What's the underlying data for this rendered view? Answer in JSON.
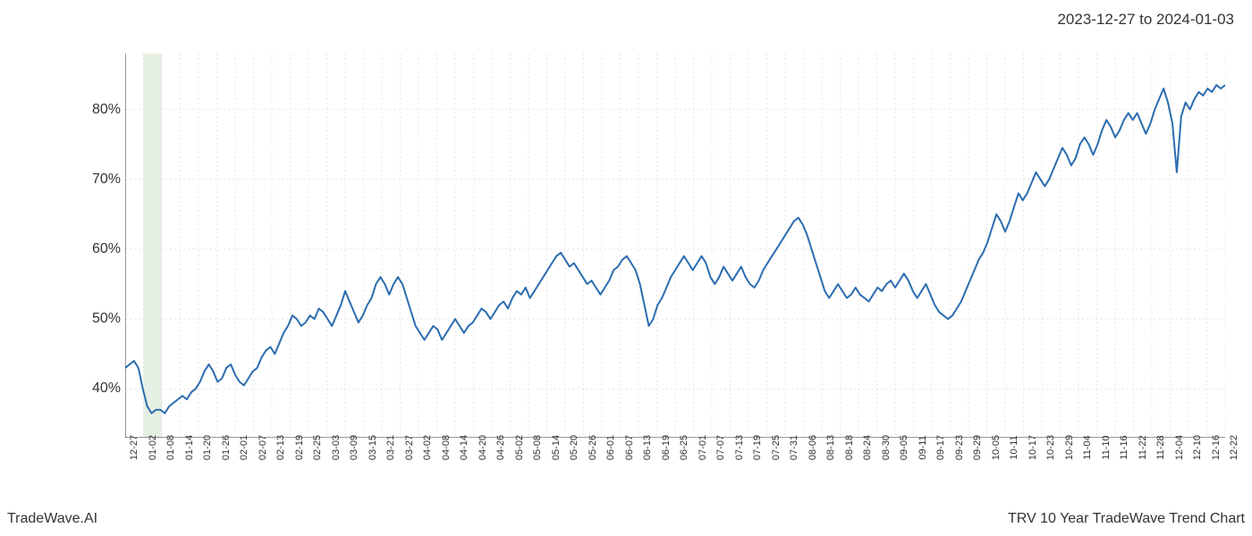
{
  "header": {
    "date_range": "2023-12-27 to 2024-01-03"
  },
  "footer": {
    "left": "TradeWave.AI",
    "right": "TRV 10 Year TradeWave Trend Chart"
  },
  "chart": {
    "type": "line",
    "background_color": "#ffffff",
    "grid_color": "#d8d8d8",
    "line_color": "#2b6cb0",
    "line_width": 2,
    "highlight_band_color": "#dce8d8",
    "highlight_band_start": "01-02",
    "highlight_band_end": "01-08",
    "axis_label_color": "#333333",
    "y_axis": {
      "ticks": [
        40,
        50,
        60,
        70,
        80
      ],
      "tick_labels": [
        "40%",
        "50%",
        "60%",
        "70%",
        "80%"
      ],
      "min": 33,
      "max": 88,
      "fontsize": 16
    },
    "x_axis": {
      "ticks": [
        "12-27",
        "01-02",
        "01-08",
        "01-14",
        "01-20",
        "01-26",
        "02-01",
        "02-07",
        "02-13",
        "02-19",
        "02-25",
        "03-03",
        "03-09",
        "03-15",
        "03-21",
        "03-27",
        "04-02",
        "04-08",
        "04-14",
        "04-20",
        "04-26",
        "05-02",
        "05-08",
        "05-14",
        "05-20",
        "05-26",
        "06-01",
        "06-07",
        "06-13",
        "06-19",
        "06-25",
        "07-01",
        "07-07",
        "07-13",
        "07-19",
        "07-25",
        "07-31",
        "08-06",
        "08-13",
        "08-18",
        "08-24",
        "08-30",
        "09-05",
        "09-11",
        "09-17",
        "09-23",
        "09-29",
        "10-05",
        "10-11",
        "10-17",
        "10-23",
        "10-29",
        "11-04",
        "11-10",
        "11-16",
        "11-22",
        "11-28",
        "12-04",
        "12-10",
        "12-16",
        "12-22"
      ],
      "fontsize": 11,
      "rotation": 90
    },
    "series": [
      {
        "x": "12-27",
        "y": 43.0
      },
      {
        "x": "12-28",
        "y": 43.5
      },
      {
        "x": "12-29",
        "y": 44.0
      },
      {
        "x": "01-02",
        "y": 43.0
      },
      {
        "x": "01-03",
        "y": 40.0
      },
      {
        "x": "01-04",
        "y": 37.5
      },
      {
        "x": "01-05",
        "y": 36.5
      },
      {
        "x": "01-08",
        "y": 37.0
      },
      {
        "x": "01-09",
        "y": 37.0
      },
      {
        "x": "01-10",
        "y": 36.5
      },
      {
        "x": "01-11",
        "y": 37.5
      },
      {
        "x": "01-12",
        "y": 38.0
      },
      {
        "x": "01-14",
        "y": 38.5
      },
      {
        "x": "01-16",
        "y": 39.0
      },
      {
        "x": "01-17",
        "y": 38.5
      },
      {
        "x": "01-18",
        "y": 39.5
      },
      {
        "x": "01-20",
        "y": 40.0
      },
      {
        "x": "01-22",
        "y": 41.0
      },
      {
        "x": "01-23",
        "y": 42.5
      },
      {
        "x": "01-24",
        "y": 43.5
      },
      {
        "x": "01-26",
        "y": 42.5
      },
      {
        "x": "01-29",
        "y": 41.0
      },
      {
        "x": "01-30",
        "y": 41.5
      },
      {
        "x": "02-01",
        "y": 43.0
      },
      {
        "x": "02-02",
        "y": 43.5
      },
      {
        "x": "02-05",
        "y": 42.0
      },
      {
        "x": "02-07",
        "y": 41.0
      },
      {
        "x": "02-08",
        "y": 40.5
      },
      {
        "x": "02-09",
        "y": 41.5
      },
      {
        "x": "02-12",
        "y": 42.5
      },
      {
        "x": "02-13",
        "y": 43.0
      },
      {
        "x": "02-14",
        "y": 44.5
      },
      {
        "x": "02-16",
        "y": 45.5
      },
      {
        "x": "02-19",
        "y": 46.0
      },
      {
        "x": "02-20",
        "y": 45.0
      },
      {
        "x": "02-21",
        "y": 46.5
      },
      {
        "x": "02-23",
        "y": 48.0
      },
      {
        "x": "02-25",
        "y": 49.0
      },
      {
        "x": "02-27",
        "y": 50.5
      },
      {
        "x": "02-28",
        "y": 50.0
      },
      {
        "x": "03-01",
        "y": 49.0
      },
      {
        "x": "03-03",
        "y": 49.5
      },
      {
        "x": "03-05",
        "y": 50.5
      },
      {
        "x": "03-06",
        "y": 50.0
      },
      {
        "x": "03-07",
        "y": 51.5
      },
      {
        "x": "03-09",
        "y": 51.0
      },
      {
        "x": "03-11",
        "y": 50.0
      },
      {
        "x": "03-12",
        "y": 49.0
      },
      {
        "x": "03-13",
        "y": 50.5
      },
      {
        "x": "03-15",
        "y": 52.0
      },
      {
        "x": "03-18",
        "y": 54.0
      },
      {
        "x": "03-19",
        "y": 52.5
      },
      {
        "x": "03-20",
        "y": 51.0
      },
      {
        "x": "03-21",
        "y": 49.5
      },
      {
        "x": "03-22",
        "y": 50.5
      },
      {
        "x": "03-25",
        "y": 52.0
      },
      {
        "x": "03-27",
        "y": 53.0
      },
      {
        "x": "03-28",
        "y": 55.0
      },
      {
        "x": "04-01",
        "y": 56.0
      },
      {
        "x": "04-02",
        "y": 55.0
      },
      {
        "x": "04-03",
        "y": 53.5
      },
      {
        "x": "04-05",
        "y": 55.0
      },
      {
        "x": "04-08",
        "y": 56.0
      },
      {
        "x": "04-09",
        "y": 55.0
      },
      {
        "x": "04-10",
        "y": 53.0
      },
      {
        "x": "04-12",
        "y": 51.0
      },
      {
        "x": "04-14",
        "y": 49.0
      },
      {
        "x": "04-15",
        "y": 48.0
      },
      {
        "x": "04-16",
        "y": 47.0
      },
      {
        "x": "04-17",
        "y": 48.0
      },
      {
        "x": "04-18",
        "y": 49.0
      },
      {
        "x": "04-20",
        "y": 48.5
      },
      {
        "x": "04-22",
        "y": 47.0
      },
      {
        "x": "04-23",
        "y": 48.0
      },
      {
        "x": "04-24",
        "y": 49.0
      },
      {
        "x": "04-26",
        "y": 50.0
      },
      {
        "x": "04-29",
        "y": 49.0
      },
      {
        "x": "04-30",
        "y": 48.0
      },
      {
        "x": "05-01",
        "y": 49.0
      },
      {
        "x": "05-02",
        "y": 49.5
      },
      {
        "x": "05-03",
        "y": 50.5
      },
      {
        "x": "05-06",
        "y": 51.5
      },
      {
        "x": "05-08",
        "y": 51.0
      },
      {
        "x": "05-09",
        "y": 50.0
      },
      {
        "x": "05-10",
        "y": 51.0
      },
      {
        "x": "05-13",
        "y": 52.0
      },
      {
        "x": "05-14",
        "y": 52.5
      },
      {
        "x": "05-15",
        "y": 51.5
      },
      {
        "x": "05-16",
        "y": 53.0
      },
      {
        "x": "05-17",
        "y": 54.0
      },
      {
        "x": "05-20",
        "y": 53.5
      },
      {
        "x": "05-21",
        "y": 54.5
      },
      {
        "x": "05-22",
        "y": 53.0
      },
      {
        "x": "05-23",
        "y": 54.0
      },
      {
        "x": "05-24",
        "y": 55.0
      },
      {
        "x": "05-26",
        "y": 56.0
      },
      {
        "x": "05-28",
        "y": 57.0
      },
      {
        "x": "05-29",
        "y": 58.0
      },
      {
        "x": "05-30",
        "y": 59.0
      },
      {
        "x": "06-01",
        "y": 59.5
      },
      {
        "x": "06-03",
        "y": 58.5
      },
      {
        "x": "06-04",
        "y": 57.5
      },
      {
        "x": "06-05",
        "y": 58.0
      },
      {
        "x": "06-06",
        "y": 57.0
      },
      {
        "x": "06-07",
        "y": 56.0
      },
      {
        "x": "06-10",
        "y": 55.0
      },
      {
        "x": "06-11",
        "y": 55.5
      },
      {
        "x": "06-12",
        "y": 54.5
      },
      {
        "x": "06-13",
        "y": 53.5
      },
      {
        "x": "06-14",
        "y": 54.5
      },
      {
        "x": "06-17",
        "y": 55.5
      },
      {
        "x": "06-18",
        "y": 57.0
      },
      {
        "x": "06-19",
        "y": 57.5
      },
      {
        "x": "06-20",
        "y": 58.5
      },
      {
        "x": "06-21",
        "y": 59.0
      },
      {
        "x": "06-24",
        "y": 58.0
      },
      {
        "x": "06-25",
        "y": 57.0
      },
      {
        "x": "06-26",
        "y": 55.0
      },
      {
        "x": "06-27",
        "y": 52.0
      },
      {
        "x": "06-28",
        "y": 49.0
      },
      {
        "x": "07-01",
        "y": 50.0
      },
      {
        "x": "07-02",
        "y": 52.0
      },
      {
        "x": "07-03",
        "y": 53.0
      },
      {
        "x": "07-05",
        "y": 54.5
      },
      {
        "x": "07-07",
        "y": 56.0
      },
      {
        "x": "07-08",
        "y": 57.0
      },
      {
        "x": "07-09",
        "y": 58.0
      },
      {
        "x": "07-10",
        "y": 59.0
      },
      {
        "x": "07-11",
        "y": 58.0
      },
      {
        "x": "07-12",
        "y": 57.0
      },
      {
        "x": "07-13",
        "y": 58.0
      },
      {
        "x": "07-15",
        "y": 59.0
      },
      {
        "x": "07-16",
        "y": 58.0
      },
      {
        "x": "07-17",
        "y": 56.0
      },
      {
        "x": "07-18",
        "y": 55.0
      },
      {
        "x": "07-19",
        "y": 56.0
      },
      {
        "x": "07-22",
        "y": 57.5
      },
      {
        "x": "07-23",
        "y": 56.5
      },
      {
        "x": "07-24",
        "y": 55.5
      },
      {
        "x": "07-25",
        "y": 56.5
      },
      {
        "x": "07-26",
        "y": 57.5
      },
      {
        "x": "07-29",
        "y": 56.0
      },
      {
        "x": "07-30",
        "y": 55.0
      },
      {
        "x": "07-31",
        "y": 54.5
      },
      {
        "x": "08-01",
        "y": 55.5
      },
      {
        "x": "08-02",
        "y": 57.0
      },
      {
        "x": "08-05",
        "y": 58.0
      },
      {
        "x": "08-06",
        "y": 59.0
      },
      {
        "x": "08-07",
        "y": 60.0
      },
      {
        "x": "08-08",
        "y": 61.0
      },
      {
        "x": "08-09",
        "y": 62.0
      },
      {
        "x": "08-12",
        "y": 63.0
      },
      {
        "x": "08-13",
        "y": 64.0
      },
      {
        "x": "08-14",
        "y": 64.5
      },
      {
        "x": "08-15",
        "y": 63.5
      },
      {
        "x": "08-16",
        "y": 62.0
      },
      {
        "x": "08-18",
        "y": 60.0
      },
      {
        "x": "08-19",
        "y": 58.0
      },
      {
        "x": "08-20",
        "y": 56.0
      },
      {
        "x": "08-21",
        "y": 54.0
      },
      {
        "x": "08-22",
        "y": 53.0
      },
      {
        "x": "08-23",
        "y": 54.0
      },
      {
        "x": "08-24",
        "y": 55.0
      },
      {
        "x": "08-26",
        "y": 54.0
      },
      {
        "x": "08-27",
        "y": 53.0
      },
      {
        "x": "08-28",
        "y": 53.5
      },
      {
        "x": "08-29",
        "y": 54.5
      },
      {
        "x": "08-30",
        "y": 53.5
      },
      {
        "x": "09-03",
        "y": 53.0
      },
      {
        "x": "09-04",
        "y": 52.5
      },
      {
        "x": "09-05",
        "y": 53.5
      },
      {
        "x": "09-06",
        "y": 54.5
      },
      {
        "x": "09-09",
        "y": 54.0
      },
      {
        "x": "09-10",
        "y": 55.0
      },
      {
        "x": "09-11",
        "y": 55.5
      },
      {
        "x": "09-12",
        "y": 54.5
      },
      {
        "x": "09-13",
        "y": 55.5
      },
      {
        "x": "09-16",
        "y": 56.5
      },
      {
        "x": "09-17",
        "y": 55.5
      },
      {
        "x": "09-18",
        "y": 54.0
      },
      {
        "x": "09-19",
        "y": 53.0
      },
      {
        "x": "09-20",
        "y": 54.0
      },
      {
        "x": "09-23",
        "y": 55.0
      },
      {
        "x": "09-24",
        "y": 53.5
      },
      {
        "x": "09-25",
        "y": 52.0
      },
      {
        "x": "09-26",
        "y": 51.0
      },
      {
        "x": "09-27",
        "y": 50.5
      },
      {
        "x": "09-29",
        "y": 50.0
      },
      {
        "x": "10-01",
        "y": 50.5
      },
      {
        "x": "10-02",
        "y": 51.5
      },
      {
        "x": "10-03",
        "y": 52.5
      },
      {
        "x": "10-04",
        "y": 54.0
      },
      {
        "x": "10-05",
        "y": 55.5
      },
      {
        "x": "10-07",
        "y": 57.0
      },
      {
        "x": "10-08",
        "y": 58.5
      },
      {
        "x": "10-09",
        "y": 59.5
      },
      {
        "x": "10-10",
        "y": 61.0
      },
      {
        "x": "10-11",
        "y": 63.0
      },
      {
        "x": "10-14",
        "y": 65.0
      },
      {
        "x": "10-15",
        "y": 64.0
      },
      {
        "x": "10-16",
        "y": 62.5
      },
      {
        "x": "10-17",
        "y": 64.0
      },
      {
        "x": "10-18",
        "y": 66.0
      },
      {
        "x": "10-21",
        "y": 68.0
      },
      {
        "x": "10-22",
        "y": 67.0
      },
      {
        "x": "10-23",
        "y": 68.0
      },
      {
        "x": "10-24",
        "y": 69.5
      },
      {
        "x": "10-25",
        "y": 71.0
      },
      {
        "x": "10-28",
        "y": 70.0
      },
      {
        "x": "10-29",
        "y": 69.0
      },
      {
        "x": "10-30",
        "y": 70.0
      },
      {
        "x": "10-31",
        "y": 71.5
      },
      {
        "x": "11-01",
        "y": 73.0
      },
      {
        "x": "11-04",
        "y": 74.5
      },
      {
        "x": "11-05",
        "y": 73.5
      },
      {
        "x": "11-06",
        "y": 72.0
      },
      {
        "x": "11-07",
        "y": 73.0
      },
      {
        "x": "11-08",
        "y": 75.0
      },
      {
        "x": "11-10",
        "y": 76.0
      },
      {
        "x": "11-11",
        "y": 75.0
      },
      {
        "x": "11-12",
        "y": 73.5
      },
      {
        "x": "11-13",
        "y": 75.0
      },
      {
        "x": "11-14",
        "y": 77.0
      },
      {
        "x": "11-15",
        "y": 78.5
      },
      {
        "x": "11-16",
        "y": 77.5
      },
      {
        "x": "11-18",
        "y": 76.0
      },
      {
        "x": "11-19",
        "y": 77.0
      },
      {
        "x": "11-20",
        "y": 78.5
      },
      {
        "x": "11-21",
        "y": 79.5
      },
      {
        "x": "11-22",
        "y": 78.5
      },
      {
        "x": "11-25",
        "y": 79.5
      },
      {
        "x": "11-26",
        "y": 78.0
      },
      {
        "x": "11-27",
        "y": 76.5
      },
      {
        "x": "11-28",
        "y": 78.0
      },
      {
        "x": "11-29",
        "y": 80.0
      },
      {
        "x": "12-02",
        "y": 81.5
      },
      {
        "x": "12-03",
        "y": 83.0
      },
      {
        "x": "12-04",
        "y": 81.0
      },
      {
        "x": "12-05",
        "y": 78.0
      },
      {
        "x": "12-06",
        "y": 71.0
      },
      {
        "x": "12-09",
        "y": 79.0
      },
      {
        "x": "12-10",
        "y": 81.0
      },
      {
        "x": "12-11",
        "y": 80.0
      },
      {
        "x": "12-12",
        "y": 81.5
      },
      {
        "x": "12-13",
        "y": 82.5
      },
      {
        "x": "12-16",
        "y": 82.0
      },
      {
        "x": "12-17",
        "y": 83.0
      },
      {
        "x": "12-18",
        "y": 82.5
      },
      {
        "x": "12-19",
        "y": 83.5
      },
      {
        "x": "12-20",
        "y": 83.0
      },
      {
        "x": "12-22",
        "y": 83.5
      }
    ]
  }
}
